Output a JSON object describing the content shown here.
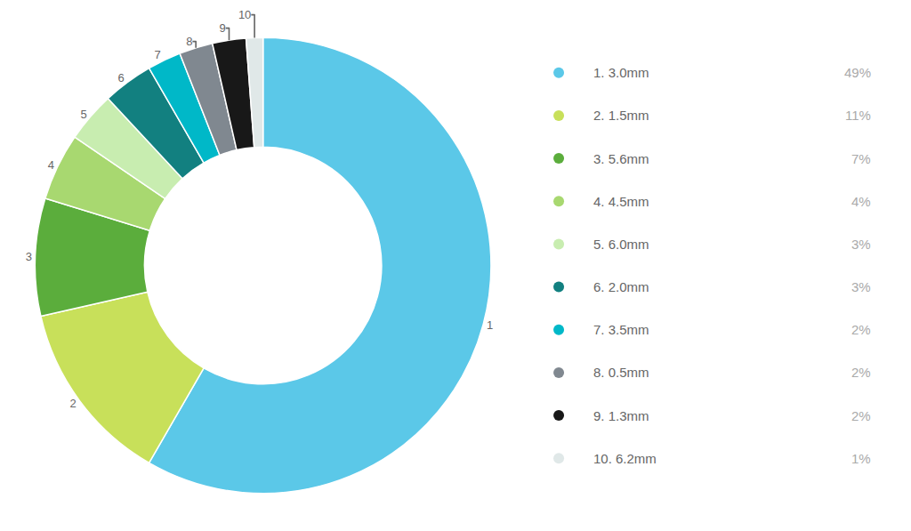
{
  "chart_data": {
    "type": "donut",
    "labels": [
      "1",
      "2",
      "3",
      "4",
      "5",
      "6",
      "7",
      "8",
      "9",
      "10"
    ],
    "categories": [
      "1. 3.0mm",
      "2. 1.5mm",
      "3. 5.6mm",
      "4. 4.5mm",
      "5. 6.0mm",
      "6. 2.0mm",
      "7. 3.5mm",
      "8. 0.5mm",
      "9. 1.3mm",
      "10. 6.2mm"
    ],
    "values": [
      49,
      11,
      7,
      4,
      3,
      3,
      2,
      2,
      2,
      1
    ],
    "value_labels": [
      "49%",
      "11%",
      "7%",
      "4%",
      "3%",
      "3%",
      "2%",
      "2%",
      "2%",
      "1%"
    ],
    "colors": [
      "#5BC8E8",
      "#C8E05A",
      "#5BAD3C",
      "#A8D870",
      "#C8EDB0",
      "#128080",
      "#00B8C8",
      "#808890",
      "#181818",
      "#E0E8E8"
    ],
    "legend": "right"
  }
}
